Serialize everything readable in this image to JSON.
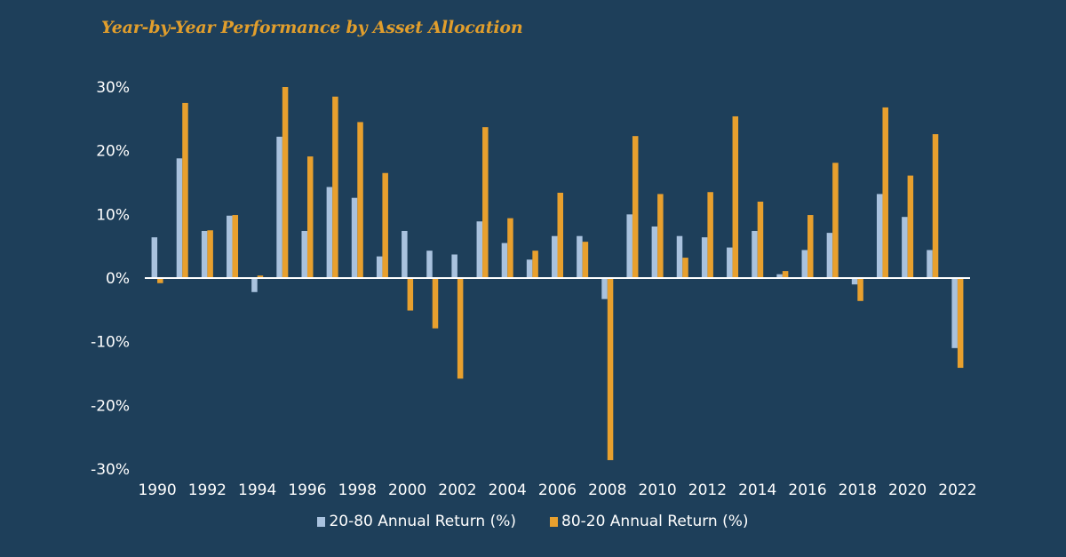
{
  "chart_data": {
    "type": "bar",
    "title": "Year-by-Year Performance by Asset Allocation",
    "xlabel": "",
    "ylabel": "",
    "ylim": [
      -30,
      30
    ],
    "yticks": [
      30,
      20,
      10,
      0,
      -10,
      -20,
      -30
    ],
    "ytick_labels": [
      "30%",
      "20%",
      "10%",
      "0%",
      "-10%",
      "-20%",
      "-30%"
    ],
    "categories": [
      1990,
      1991,
      1992,
      1993,
      1994,
      1995,
      1996,
      1997,
      1998,
      1999,
      2000,
      2001,
      2002,
      2003,
      2004,
      2005,
      2006,
      2007,
      2008,
      2009,
      2010,
      2011,
      2012,
      2013,
      2014,
      2015,
      2016,
      2017,
      2018,
      2019,
      2020,
      2021,
      2022
    ],
    "xtick_labels": [
      "1990",
      "1992",
      "1994",
      "1996",
      "1998",
      "2000",
      "2002",
      "2004",
      "2006",
      "2008",
      "2010",
      "2012",
      "2014",
      "2016",
      "2018",
      "2020",
      "2022"
    ],
    "series": [
      {
        "name": "20-80 Annual Return (%)",
        "color": "#a9c2de",
        "values": [
          6.4,
          18.8,
          7.4,
          9.8,
          -2.2,
          22.2,
          7.4,
          14.3,
          12.6,
          3.4,
          7.4,
          4.3,
          3.7,
          8.9,
          5.5,
          2.9,
          6.6,
          6.6,
          -3.3,
          10.0,
          8.1,
          6.6,
          6.4,
          4.8,
          7.4,
          0.6,
          4.4,
          7.1,
          -1.0,
          13.2,
          9.6,
          4.4,
          -11.0
        ]
      },
      {
        "name": "80-20 Annual Return (%)",
        "color": "#e8a02e",
        "values": [
          -0.8,
          27.5,
          7.5,
          9.9,
          0.4,
          30.0,
          19.1,
          28.5,
          24.5,
          16.5,
          -5.1,
          -7.9,
          -15.8,
          23.7,
          9.4,
          4.3,
          13.4,
          5.7,
          -28.6,
          22.3,
          13.2,
          3.2,
          13.5,
          25.4,
          12.0,
          1.1,
          9.9,
          18.1,
          -3.6,
          26.8,
          16.1,
          22.6,
          -14.1
        ]
      }
    ],
    "legend_position": "bottom",
    "grid": false
  },
  "colors": {
    "background": "#1e3f5a",
    "title": "#e19e2c",
    "axis": "#ffffff"
  }
}
